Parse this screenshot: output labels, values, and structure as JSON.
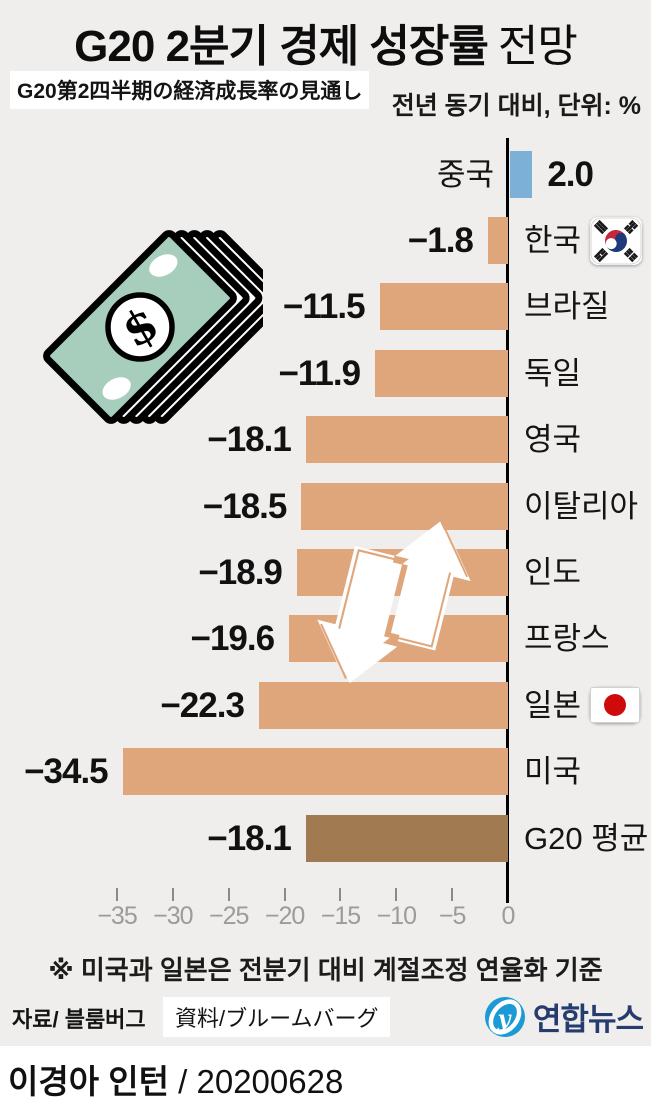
{
  "title": {
    "main": "G20 2분기 경제 성장률",
    "suffix": "전망"
  },
  "subtitle_jp": "G20第2四半期の経済成長率の見通し",
  "unit_label": "전년 동기 대비, 단위: %",
  "chart_data": {
    "type": "bar",
    "orientation": "horizontal",
    "title": "G20 2분기 경제 성장률 전망",
    "categories": [
      "중국",
      "한국",
      "브라질",
      "독일",
      "영국",
      "이탈리아",
      "인도",
      "프랑스",
      "일본",
      "미국",
      "G20 평균"
    ],
    "values": [
      2.0,
      -1.8,
      -11.5,
      -11.9,
      -18.1,
      -18.5,
      -18.9,
      -19.6,
      -22.3,
      -34.5,
      -18.1
    ],
    "value_labels": [
      "2.0",
      "−1.8",
      "−11.5",
      "−11.9",
      "−18.1",
      "−18.5",
      "−18.9",
      "−19.6",
      "−22.3",
      "−34.5",
      "−18.1"
    ],
    "flags": [
      "",
      "korea-flag-icon",
      "",
      "",
      "",
      "",
      "",
      "",
      "japan-flag-icon",
      "",
      ""
    ],
    "bar_colors": {
      "positive": "#7cb0d6",
      "negative": "#dfa67b",
      "average": "#a27a52"
    },
    "x_ticks": [
      "−35",
      "−30",
      "−25",
      "−20",
      "−15",
      "−10",
      "−5",
      "0"
    ],
    "x_tick_values": [
      -35,
      -30,
      -25,
      -20,
      -15,
      -10,
      -5,
      0
    ],
    "xlim": [
      -35,
      2.5
    ],
    "grid": false,
    "legend": false,
    "axis_color": "#000000"
  },
  "note": "※ 미국과 일본은 전분기 대비 계절조정 연율화 기준",
  "source": {
    "kr": "자료/ 블룸버그",
    "jp": "資料/ブルームバーグ"
  },
  "logo": {
    "text": "연합뉴스",
    "accent": "#1a9ad6",
    "navy": "#263c6e"
  },
  "footer": {
    "byline": "이경아 인턴",
    "separator": " / ",
    "date": "20200628"
  }
}
